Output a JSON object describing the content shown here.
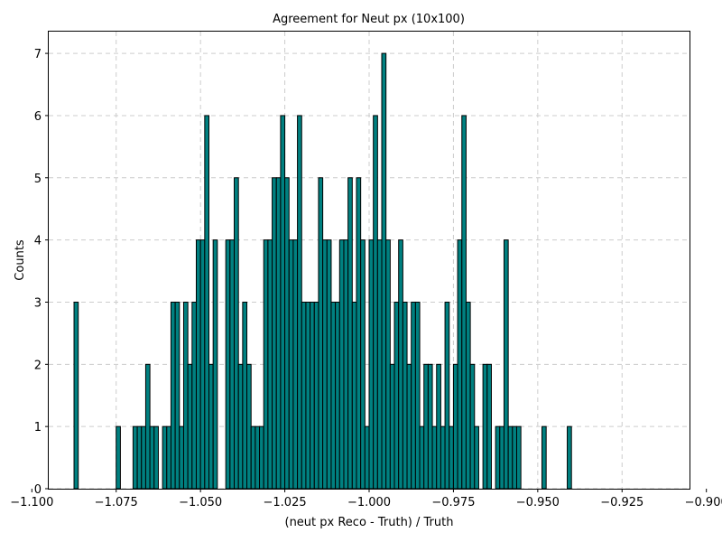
{
  "chart_data": {
    "type": "bar",
    "title": "Agreement for Neut px (10x100)",
    "xlabel": "(neut px Reco - Truth) / Truth",
    "ylabel": "Counts",
    "xlim": [
      -1.095,
      -0.905
    ],
    "ylim": [
      0,
      7.35
    ],
    "grid": true,
    "bar_color": "#008080",
    "edge_color": "#000000",
    "x_ticks": [
      -1.1,
      -1.075,
      -1.05,
      -1.025,
      -1.0,
      -0.975,
      -0.95,
      -0.925,
      -0.9
    ],
    "x_tick_labels": [
      "−1.100",
      "−1.075",
      "−1.050",
      "−1.025",
      "−1.000",
      "−0.975",
      "−0.950",
      "−0.925",
      "−0.900"
    ],
    "y_ticks": [
      0,
      1,
      2,
      3,
      4,
      5,
      6,
      7
    ],
    "y_tick_labels": [
      "0",
      "1",
      "2",
      "3",
      "4",
      "5",
      "6",
      "7"
    ],
    "bin_start": -1.0925,
    "bin_width": 0.00125,
    "counts": [
      0,
      0,
      0,
      0,
      3,
      0,
      0,
      0,
      0,
      0,
      0,
      0,
      0,
      0,
      1,
      0,
      0,
      0,
      1,
      1,
      1,
      2,
      1,
      1,
      0,
      1,
      1,
      3,
      3,
      1,
      3,
      2,
      3,
      4,
      4,
      6,
      2,
      4,
      0,
      0,
      4,
      4,
      5,
      2,
      3,
      2,
      1,
      1,
      1,
      4,
      4,
      5,
      5,
      6,
      5,
      4,
      4,
      6,
      3,
      3,
      3,
      3,
      5,
      4,
      4,
      3,
      3,
      4,
      4,
      5,
      3,
      5,
      4,
      1,
      4,
      6,
      4,
      7,
      4,
      2,
      3,
      4,
      3,
      2,
      3,
      3,
      1,
      2,
      2,
      1,
      2,
      1,
      3,
      1,
      2,
      4,
      6,
      3,
      2,
      1,
      0,
      2,
      2,
      0,
      1,
      1,
      4,
      1,
      1,
      1,
      0,
      0,
      0,
      0,
      0,
      1,
      0,
      0,
      0,
      0,
      0,
      1,
      0
    ]
  }
}
